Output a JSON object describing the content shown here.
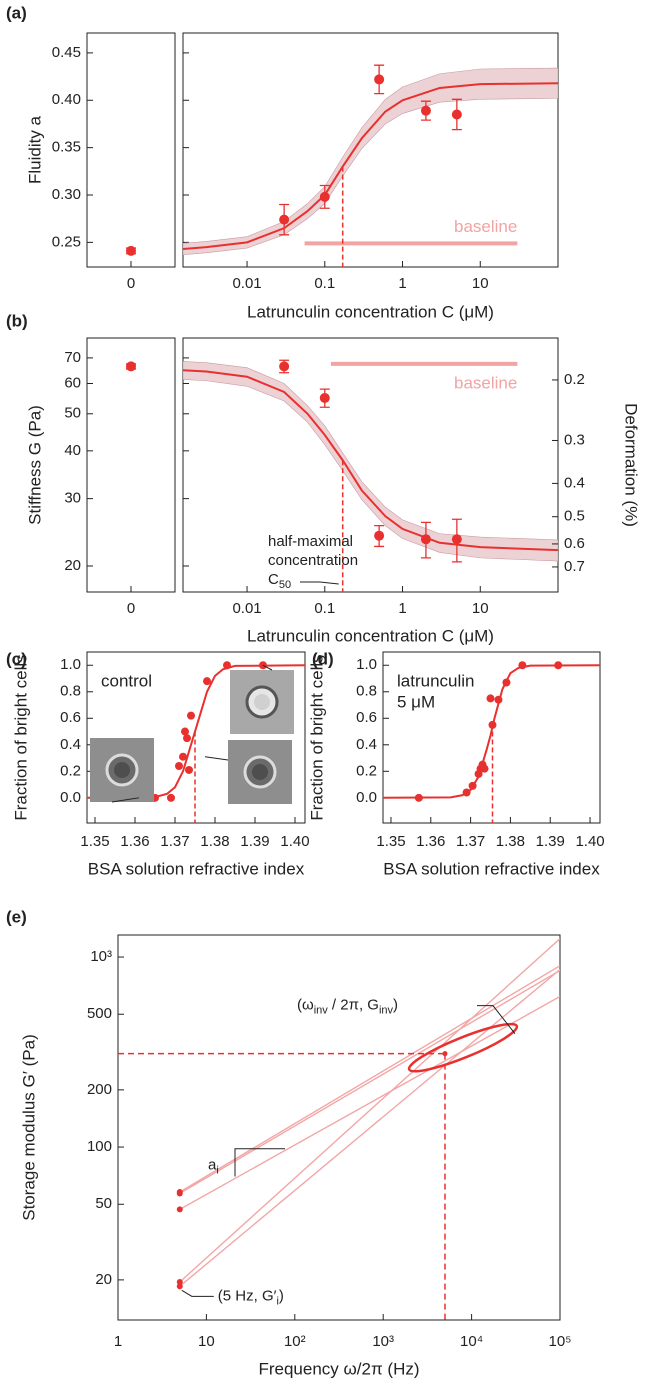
{
  "chart_data": [
    {
      "type": "scatter",
      "panel_label": "(a)",
      "ylabel": "Fluidity a",
      "xlabel": "Latrunculin concentration C (μM)",
      "xscale": "log",
      "xlim": [
        0.0015,
        100
      ],
      "xticks": [
        0.01,
        0.1,
        1,
        10
      ],
      "ylim": [
        0.224,
        0.471
      ],
      "yticks": [
        0.25,
        {
          "value": 0.3,
          "label": "0.30"
        },
        0.35,
        {
          "value": 0.4,
          "label": "0.40"
        },
        0.45
      ],
      "color": "#e8312f",
      "band_color": "#ecd2d5",
      "control": {
        "category": "0",
        "value": 0.241,
        "error": 0.003
      },
      "points": {
        "x": [
          0.03,
          0.1,
          0.5,
          2,
          5
        ],
        "values": [
          0.274,
          0.298,
          0.422,
          0.389,
          0.385
        ],
        "errors": [
          0.016,
          0.012,
          0.015,
          0.01,
          0.016
        ]
      },
      "fit": {
        "x": [
          0.0015,
          0.003,
          0.01,
          0.03,
          0.06,
          0.1,
          0.17,
          0.3,
          0.6,
          1,
          3,
          10,
          100
        ],
        "values": [
          0.243,
          0.245,
          0.25,
          0.265,
          0.283,
          0.3,
          0.33,
          0.36,
          0.388,
          0.4,
          0.413,
          0.417,
          0.418
        ],
        "lower": [
          0.237,
          0.239,
          0.244,
          0.258,
          0.275,
          0.291,
          0.32,
          0.349,
          0.375,
          0.386,
          0.398,
          0.401,
          0.402
        ],
        "upper": [
          0.249,
          0.251,
          0.256,
          0.272,
          0.291,
          0.309,
          0.34,
          0.371,
          0.401,
          0.414,
          0.428,
          0.433,
          0.434
        ]
      },
      "half_max": {
        "x": 0.17,
        "value": 0.33
      },
      "baseline": {
        "label": "baseline",
        "color": "#f4a3a3",
        "x": [
          0.055,
          30
        ],
        "value": 0.249
      }
    },
    {
      "type": "scatter",
      "panel_label": "(b)",
      "ylabel": "Stiffness G (Pa)",
      "xlabel": "Latrunculin concentration C (μM)",
      "xscale": "log",
      "xlim": [
        0.0015,
        100
      ],
      "xticks": [
        0.01,
        0.1,
        1,
        10
      ],
      "yscale": "log",
      "ylim": [
        17.1,
        78.9
      ],
      "yticks": [
        20,
        30,
        40,
        50,
        60,
        70
      ],
      "y2label": "Deformation (%)",
      "y2scale": "log",
      "y2lim": [
        0.828,
        0.151
      ],
      "y2ticks": [
        0.2,
        0.3,
        0.4,
        0.5,
        0.6,
        0.7
      ],
      "color": "#e8312f",
      "band_color": "#ecd2d5",
      "control": {
        "category": "0",
        "value": 66.5,
        "error": 1
      },
      "points": {
        "x": [
          0.03,
          0.1,
          0.5,
          2,
          5
        ],
        "values": [
          66.5,
          55,
          24,
          23.5,
          23.5
        ],
        "errors": [
          2.5,
          3,
          1.5,
          2.5,
          3
        ]
      },
      "fit": {
        "x": [
          0.0015,
          0.003,
          0.01,
          0.03,
          0.06,
          0.1,
          0.17,
          0.3,
          0.6,
          1,
          3,
          10,
          100
        ],
        "values": [
          65,
          64.5,
          62.5,
          57,
          50,
          44,
          37.8,
          31.5,
          27,
          25,
          23,
          22.4,
          22
        ],
        "lower": [
          61.5,
          61,
          59,
          54,
          47.5,
          41.5,
          35.5,
          29.8,
          25.5,
          23.6,
          21.7,
          21,
          20.6
        ],
        "upper": [
          68.5,
          68,
          66,
          60,
          52.5,
          46.5,
          39.5,
          33.2,
          28.5,
          26.4,
          24.3,
          23.8,
          23.4
        ]
      },
      "half_max": {
        "x": 0.17,
        "value": 37.8
      },
      "baseline": {
        "label": "baseline",
        "color": "#f4a3a3",
        "x": [
          0.12,
          30
        ],
        "value": 67.5
      },
      "annotation": {
        "lines": [
          "half-maximal",
          "concentration"
        ],
        "symbol": [
          {
            "text": "C"
          },
          {
            "text": "50",
            "sub": true
          }
        ]
      }
    },
    {
      "type": "scatter",
      "panel_label": "(c)",
      "ylabel": "Fraction of bright cells",
      "xlabel": "BSA solution refractive index",
      "xlim": [
        1.348,
        1.4025
      ],
      "xticks": [
        1.35,
        1.36,
        1.37,
        1.38,
        1.39,
        {
          "value": 1.4,
          "label": "1.40"
        }
      ],
      "ylim": [
        -0.19,
        1.1
      ],
      "yticks": [
        {
          "value": 0,
          "label": "0.0"
        },
        0.2,
        0.4,
        0.6,
        0.8,
        {
          "value": 1,
          "label": "1.0"
        }
      ],
      "color": "#e8312f",
      "text": [
        "control"
      ],
      "points": {
        "x": [
          1.361,
          1.365,
          1.369,
          1.371,
          1.372,
          1.3725,
          1.373,
          1.3735,
          1.374,
          1.378,
          1.383,
          1.392
        ],
        "values": [
          0,
          0,
          0,
          0.24,
          0.31,
          0.5,
          0.45,
          0.21,
          0.62,
          0.88,
          1,
          1
        ]
      },
      "fit": {
        "x": [
          1.348,
          1.365,
          1.368,
          1.37,
          1.372,
          1.374,
          1.375,
          1.376,
          1.378,
          1.38,
          1.382,
          1.385,
          1.4025
        ],
        "values": [
          0,
          0.005,
          0.03,
          0.08,
          0.2,
          0.4,
          0.5,
          0.6,
          0.8,
          0.92,
          0.97,
          0.995,
          1
        ]
      },
      "half_max": {
        "x": 1.375,
        "value": 0.5
      }
    },
    {
      "type": "scatter",
      "panel_label": "(d)",
      "ylabel": "Fraction of bright cells",
      "xlabel": "BSA solution refractive index",
      "xlim": [
        1.348,
        1.4025
      ],
      "xticks": [
        1.35,
        1.36,
        1.37,
        1.38,
        1.39,
        {
          "value": 1.4,
          "label": "1.40"
        }
      ],
      "ylim": [
        -0.19,
        1.1
      ],
      "yticks": [
        {
          "value": 0,
          "label": "0.0"
        },
        0.2,
        0.4,
        0.6,
        0.8,
        {
          "value": 1,
          "label": "1.0"
        }
      ],
      "color": "#e8312f",
      "text": [
        "latrunculin",
        "5 μM"
      ],
      "points": {
        "x": [
          1.357,
          1.369,
          1.3705,
          1.372,
          1.3725,
          1.373,
          1.3735,
          1.375,
          1.3755,
          1.377,
          1.379,
          1.383,
          1.392
        ],
        "values": [
          0,
          0.04,
          0.09,
          0.18,
          0.22,
          0.25,
          0.22,
          0.75,
          0.55,
          0.74,
          0.87,
          1,
          1
        ]
      },
      "fit": {
        "x": [
          1.348,
          1.365,
          1.368,
          1.37,
          1.372,
          1.374,
          1.375,
          1.376,
          1.378,
          1.38,
          1.382,
          1.385,
          1.4025
        ],
        "values": [
          0,
          0.003,
          0.02,
          0.06,
          0.16,
          0.36,
          0.47,
          0.6,
          0.82,
          0.94,
          0.98,
          0.997,
          1
        ]
      },
      "half_max": {
        "x": 1.3755,
        "value": 0.5
      }
    },
    {
      "type": "line",
      "panel_label": "(e)",
      "ylabel": "Storage modulus G′ (Pa)",
      "xlabel": "Frequency ω/2π (Hz)",
      "xscale": "log",
      "yscale": "log",
      "xlim": [
        1,
        100000
      ],
      "ylim": [
        12.3,
        1306
      ],
      "xticks": [
        1,
        10,
        {
          "value": 100,
          "label": "10²"
        },
        {
          "value": 1000,
          "label": "10³"
        },
        {
          "value": 10000,
          "label": "10⁴"
        },
        {
          "value": 100000,
          "label": "10⁵"
        }
      ],
      "yticks": [
        20,
        50,
        100,
        200,
        500,
        {
          "value": 1000,
          "label": "10³"
        }
      ],
      "color": "#e8312f",
      "lines_color": "#f3a6a6",
      "series": [
        {
          "x": [
            5,
            100000
          ],
          "values": [
            58,
            900
          ]
        },
        {
          "x": [
            5,
            100000
          ],
          "values": [
            57,
            850
          ]
        },
        {
          "x": [
            5,
            100000
          ],
          "values": [
            47,
            620
          ]
        },
        {
          "x": [
            5,
            100000
          ],
          "values": [
            19.5,
            1250
          ]
        },
        {
          "x": [
            5,
            100000
          ],
          "values": [
            18.5,
            860
          ]
        }
      ],
      "points": {
        "x": [
          5,
          5,
          5,
          5,
          5
        ],
        "values": [
          58,
          57,
          47,
          19.5,
          18.5
        ]
      },
      "inv_point": {
        "x": 5000,
        "value": 310
      },
      "annotations": {
        "inv": [
          {
            "text": "(ω"
          },
          {
            "text": "inv",
            "sub": true
          },
          {
            "text": " / 2π, G"
          },
          {
            "text": "inv",
            "sub": true
          },
          {
            "text": ")"
          }
        ],
        "slope": [
          {
            "text": "a"
          },
          {
            "text": "i",
            "sub": true
          }
        ],
        "start": [
          {
            "text": "(5 Hz, G′"
          },
          {
            "text": "i",
            "sub": true
          },
          {
            "text": ")"
          }
        ]
      }
    }
  ]
}
